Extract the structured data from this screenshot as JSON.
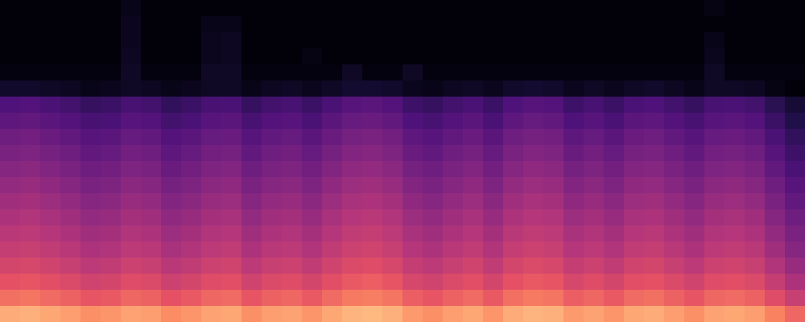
{
  "chart_data": {
    "type": "heatmap",
    "tick_labels": false,
    "color_range": [
      0,
      100
    ],
    "cells": [
      [
        1,
        1,
        1,
        1,
        1,
        1,
        4,
        1,
        1,
        1,
        1,
        1,
        1,
        1,
        1,
        1,
        1,
        1,
        1,
        1,
        1,
        1,
        1,
        1,
        1,
        1,
        1,
        1,
        1,
        1,
        1,
        1,
        1,
        1,
        1,
        3,
        1,
        1,
        1,
        1
      ],
      [
        1,
        1,
        1,
        1,
        1,
        1,
        5,
        1,
        1,
        1,
        4,
        4,
        1,
        1,
        1,
        1,
        1,
        1,
        1,
        1,
        1,
        1,
        1,
        1,
        1,
        1,
        1,
        1,
        1,
        1,
        1,
        1,
        1,
        1,
        1,
        1,
        1,
        1,
        1,
        1
      ],
      [
        1,
        1,
        1,
        1,
        1,
        1,
        5,
        1,
        1,
        1,
        5,
        6,
        1,
        1,
        1,
        1,
        1,
        1,
        1,
        1,
        1,
        1,
        1,
        1,
        1,
        1,
        1,
        1,
        1,
        1,
        1,
        1,
        1,
        1,
        1,
        4,
        1,
        1,
        1,
        1
      ],
      [
        1,
        1,
        1,
        1,
        1,
        1,
        6,
        1,
        1,
        1,
        5,
        6,
        1,
        1,
        1,
        3,
        1,
        1,
        1,
        1,
        1,
        1,
        1,
        1,
        1,
        1,
        1,
        1,
        1,
        1,
        1,
        1,
        1,
        1,
        1,
        5,
        1,
        1,
        1,
        1
      ],
      [
        2,
        2,
        2,
        2,
        2,
        2,
        7,
        2,
        2,
        2,
        7,
        7,
        2,
        2,
        2,
        2,
        2,
        7,
        2,
        2,
        7,
        2,
        2,
        2,
        2,
        2,
        2,
        2,
        2,
        2,
        2,
        2,
        2,
        2,
        2,
        7,
        2,
        2,
        2,
        2
      ],
      [
        8,
        8,
        7,
        6,
        4,
        5,
        7,
        6,
        4,
        5,
        7,
        7,
        4,
        6,
        7,
        5,
        7,
        9,
        9,
        8,
        5,
        4,
        6,
        7,
        5,
        8,
        9,
        8,
        5,
        7,
        5,
        7,
        8,
        6,
        4,
        7,
        7,
        6,
        3,
        1
      ],
      [
        25,
        26,
        24,
        22,
        19,
        20,
        23,
        22,
        18,
        20,
        23,
        24,
        19,
        22,
        23,
        20,
        24,
        27,
        28,
        26,
        21,
        19,
        22,
        24,
        20,
        25,
        27,
        26,
        21,
        23,
        20,
        24,
        25,
        22,
        19,
        23,
        24,
        22,
        16,
        10
      ],
      [
        29,
        30,
        28,
        26,
        23,
        24,
        27,
        26,
        22,
        24,
        27,
        28,
        23,
        26,
        27,
        24,
        28,
        31,
        32,
        30,
        25,
        23,
        26,
        28,
        24,
        29,
        31,
        30,
        25,
        27,
        24,
        28,
        29,
        26,
        23,
        27,
        28,
        26,
        20,
        14
      ],
      [
        33,
        34,
        32,
        30,
        27,
        28,
        31,
        30,
        26,
        28,
        31,
        32,
        27,
        30,
        31,
        28,
        32,
        35,
        36,
        34,
        29,
        27,
        30,
        32,
        28,
        33,
        35,
        34,
        29,
        31,
        28,
        32,
        33,
        30,
        27,
        31,
        32,
        30,
        24,
        18
      ],
      [
        36,
        37,
        35,
        33,
        30,
        31,
        34,
        33,
        29,
        31,
        34,
        35,
        30,
        33,
        34,
        31,
        35,
        38,
        39,
        37,
        32,
        30,
        33,
        35,
        31,
        36,
        38,
        37,
        32,
        34,
        31,
        35,
        36,
        33,
        30,
        34,
        35,
        33,
        27,
        21
      ],
      [
        39,
        40,
        38,
        36,
        33,
        34,
        37,
        36,
        32,
        34,
        37,
        38,
        33,
        36,
        37,
        34,
        38,
        41,
        42,
        40,
        35,
        33,
        36,
        38,
        34,
        39,
        41,
        40,
        35,
        37,
        34,
        38,
        39,
        36,
        33,
        37,
        38,
        36,
        30,
        24
      ],
      [
        42,
        43,
        41,
        39,
        36,
        37,
        40,
        39,
        35,
        37,
        40,
        41,
        36,
        39,
        40,
        37,
        41,
        44,
        45,
        43,
        38,
        36,
        39,
        41,
        37,
        42,
        44,
        43,
        38,
        40,
        37,
        41,
        42,
        39,
        36,
        40,
        41,
        39,
        33,
        27
      ],
      [
        45,
        46,
        44,
        42,
        39,
        40,
        43,
        42,
        38,
        40,
        43,
        44,
        39,
        42,
        43,
        40,
        44,
        47,
        48,
        46,
        41,
        39,
        42,
        44,
        40,
        45,
        47,
        46,
        41,
        43,
        40,
        44,
        45,
        42,
        39,
        43,
        44,
        42,
        36,
        30
      ],
      [
        48,
        49,
        47,
        45,
        42,
        43,
        46,
        45,
        41,
        43,
        46,
        47,
        42,
        45,
        46,
        43,
        47,
        50,
        51,
        49,
        44,
        42,
        45,
        47,
        43,
        48,
        50,
        49,
        44,
        46,
        43,
        47,
        48,
        45,
        42,
        46,
        47,
        45,
        39,
        33
      ],
      [
        51,
        52,
        50,
        48,
        45,
        46,
        49,
        48,
        44,
        46,
        49,
        50,
        45,
        48,
        49,
        46,
        50,
        53,
        54,
        52,
        47,
        45,
        48,
        50,
        46,
        51,
        53,
        52,
        47,
        49,
        46,
        50,
        51,
        48,
        45,
        49,
        50,
        48,
        42,
        36
      ],
      [
        54,
        55,
        53,
        51,
        48,
        49,
        52,
        51,
        47,
        49,
        52,
        53,
        48,
        51,
        52,
        49,
        53,
        56,
        57,
        55,
        50,
        48,
        51,
        53,
        49,
        54,
        56,
        55,
        50,
        52,
        49,
        53,
        54,
        51,
        48,
        52,
        53,
        51,
        45,
        39
      ],
      [
        58,
        59,
        57,
        55,
        52,
        53,
        56,
        55,
        51,
        53,
        56,
        57,
        52,
        55,
        56,
        53,
        57,
        60,
        61,
        59,
        54,
        52,
        55,
        57,
        53,
        58,
        60,
        59,
        54,
        56,
        53,
        57,
        58,
        55,
        52,
        56,
        57,
        55,
        49,
        43
      ],
      [
        63,
        64,
        62,
        60,
        57,
        58,
        61,
        60,
        56,
        58,
        61,
        62,
        57,
        60,
        61,
        58,
        62,
        65,
        66,
        64,
        59,
        57,
        60,
        62,
        58,
        63,
        65,
        64,
        59,
        61,
        58,
        62,
        63,
        60,
        57,
        61,
        62,
        60,
        54,
        48
      ],
      [
        70,
        71,
        69,
        67,
        64,
        65,
        68,
        67,
        63,
        65,
        68,
        69,
        64,
        67,
        68,
        65,
        69,
        72,
        73,
        71,
        66,
        64,
        67,
        69,
        65,
        70,
        72,
        71,
        66,
        68,
        65,
        69,
        70,
        67,
        64,
        68,
        69,
        67,
        61,
        55
      ],
      [
        83,
        84,
        82,
        80,
        77,
        78,
        81,
        80,
        76,
        78,
        81,
        82,
        77,
        80,
        81,
        78,
        82,
        85,
        86,
        84,
        79,
        77,
        80,
        82,
        78,
        83,
        85,
        84,
        79,
        81,
        78,
        82,
        83,
        80,
        77,
        81,
        82,
        80,
        74,
        68
      ]
    ]
  }
}
